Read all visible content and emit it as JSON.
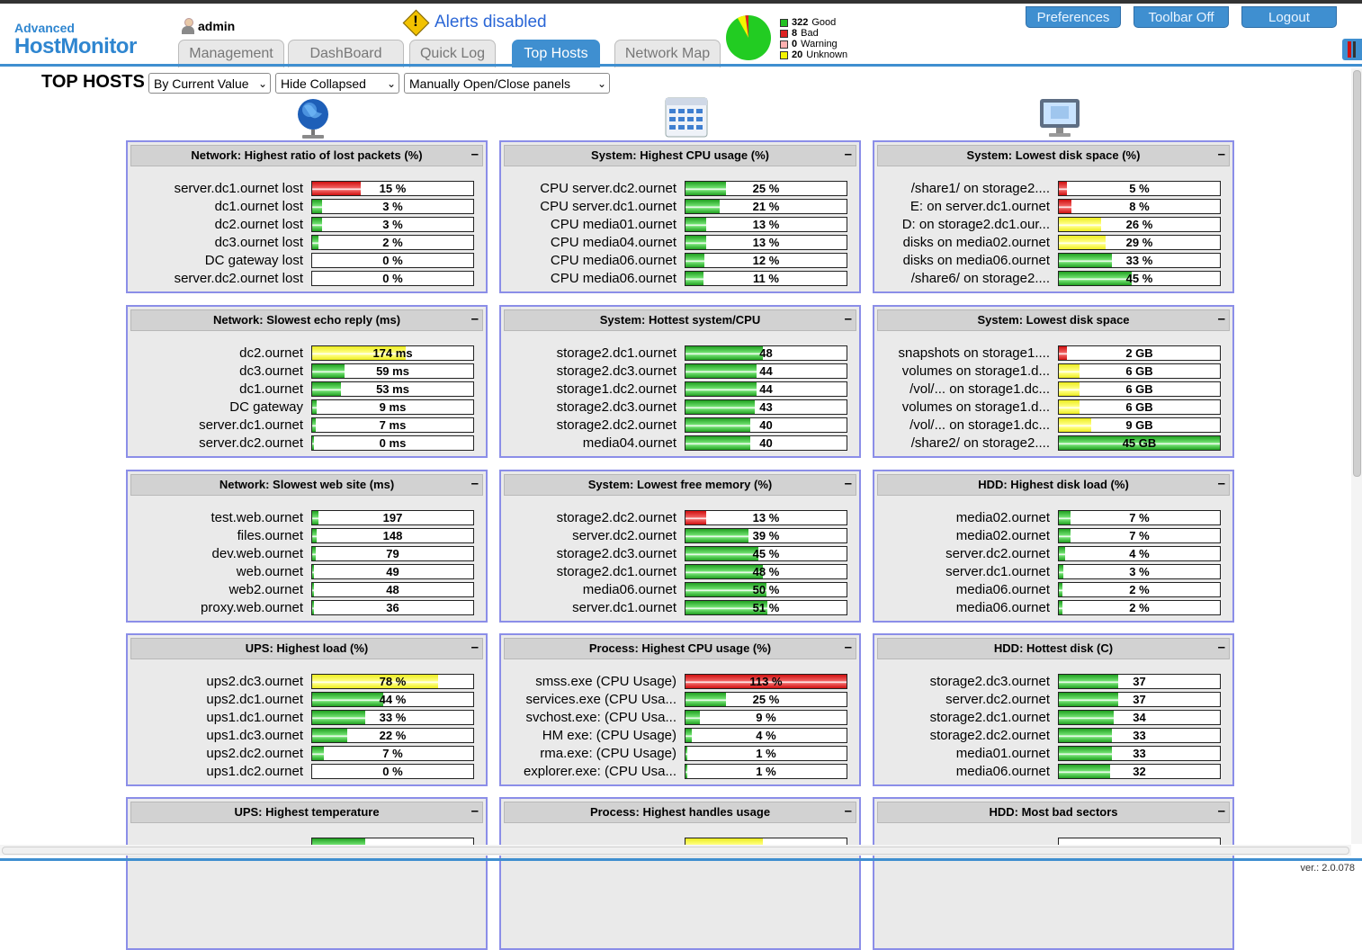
{
  "header": {
    "logo_top": "Advanced",
    "logo_main": "HostMonitor",
    "user": "admin",
    "alert_text": "Alerts disabled",
    "tabs": [
      {
        "label": "Management"
      },
      {
        "label": "DashBoard"
      },
      {
        "label": "Quick Log"
      },
      {
        "label": "Top Hosts"
      },
      {
        "label": "Network Map"
      }
    ],
    "active_tab": "Top Hosts",
    "legend": [
      {
        "count": "322",
        "label": "Good",
        "color": "#22c022"
      },
      {
        "count": "8",
        "label": "Bad",
        "color": "#dd2222"
      },
      {
        "count": "0",
        "label": "Warning",
        "color": "#ffb0b0"
      },
      {
        "count": "20",
        "label": "Unknown",
        "color": "#f4f400"
      }
    ],
    "buttons": [
      "Preferences",
      "Toolbar Off",
      "Logout"
    ]
  },
  "page": {
    "title": "TOP HOSTS",
    "selects": [
      "By Current Value",
      "Hide Collapsed",
      "Manually Open/Close panels"
    ]
  },
  "colors": {
    "good": "#22c022",
    "bad": "#dd2222",
    "warning": "#f4f400",
    "accent": "#3f8fd0",
    "panel_border": "#8b8ee8"
  },
  "columns": [
    {
      "icon": "globe-icon"
    },
    {
      "icon": "calendar-grid-icon"
    },
    {
      "icon": "monitor-icon"
    }
  ],
  "panels": [
    [
      {
        "title": "Network: Highest ratio of lost packets (%)",
        "rows": [
          {
            "label": "server.dc1.ournet lost",
            "value": "15 %",
            "level": 0.3,
            "color": "r"
          },
          {
            "label": "dc1.ournet lost",
            "value": "3 %",
            "level": 0.06,
            "color": "g"
          },
          {
            "label": "dc2.ournet lost",
            "value": "3 %",
            "level": 0.06,
            "color": "g"
          },
          {
            "label": "dc3.ournet lost",
            "value": "2 %",
            "level": 0.04,
            "color": "g"
          },
          {
            "label": "DC gateway lost",
            "value": "0 %",
            "level": 0,
            "color": "g"
          },
          {
            "label": "server.dc2.ournet lost",
            "value": "0 %",
            "level": 0,
            "color": "g"
          }
        ]
      },
      {
        "title": "Network: Slowest echo reply (ms)",
        "rows": [
          {
            "label": "dc2.ournet",
            "value": "174 ms",
            "level": 0.58,
            "color": "y"
          },
          {
            "label": "dc3.ournet",
            "value": "59 ms",
            "level": 0.2,
            "color": "g"
          },
          {
            "label": "dc1.ournet",
            "value": "53 ms",
            "level": 0.18,
            "color": "g"
          },
          {
            "label": "DC gateway",
            "value": "9 ms",
            "level": 0.03,
            "color": "g"
          },
          {
            "label": "server.dc1.ournet",
            "value": "7 ms",
            "level": 0.02,
            "color": "g"
          },
          {
            "label": "server.dc2.ournet",
            "value": "0 ms",
            "level": 0.01,
            "color": "g"
          }
        ]
      },
      {
        "title": "Network: Slowest web site (ms)",
        "rows": [
          {
            "label": "test.web.ournet",
            "value": "197",
            "level": 0.04,
            "color": "g"
          },
          {
            "label": "files.ournet",
            "value": "148",
            "level": 0.03,
            "color": "g"
          },
          {
            "label": "dev.web.ournet",
            "value": "79",
            "level": 0.02,
            "color": "g"
          },
          {
            "label": "web.ournet",
            "value": "49",
            "level": 0.01,
            "color": "g"
          },
          {
            "label": "web2.ournet",
            "value": "48",
            "level": 0.01,
            "color": "g"
          },
          {
            "label": "proxy.web.ournet",
            "value": "36",
            "level": 0.01,
            "color": "g"
          }
        ]
      },
      {
        "title": "UPS: Highest load (%)",
        "rows": [
          {
            "label": "ups2.dc3.ournet",
            "value": "78 %",
            "level": 0.78,
            "color": "y"
          },
          {
            "label": "ups2.dc1.ournet",
            "value": "44 %",
            "level": 0.44,
            "color": "g"
          },
          {
            "label": "ups1.dc1.ournet",
            "value": "33 %",
            "level": 0.33,
            "color": "g"
          },
          {
            "label": "ups1.dc3.ournet",
            "value": "22 %",
            "level": 0.22,
            "color": "g"
          },
          {
            "label": "ups2.dc2.ournet",
            "value": "7 %",
            "level": 0.07,
            "color": "g"
          },
          {
            "label": "ups1.dc2.ournet",
            "value": "0 %",
            "level": 0,
            "color": "g"
          }
        ]
      },
      {
        "title": "UPS: Highest temperature",
        "rows": [
          {
            "label": "",
            "value": "",
            "level": 0.33,
            "color": "g"
          }
        ]
      }
    ],
    [
      {
        "title": "System: Highest CPU usage (%)",
        "rows": [
          {
            "label": "CPU server.dc2.ournet",
            "value": "25 %",
            "level": 0.25,
            "color": "g"
          },
          {
            "label": "CPU server.dc1.ournet",
            "value": "21 %",
            "level": 0.21,
            "color": "g"
          },
          {
            "label": "CPU media01.ournet",
            "value": "13 %",
            "level": 0.13,
            "color": "g"
          },
          {
            "label": "CPU media04.ournet",
            "value": "13 %",
            "level": 0.13,
            "color": "g"
          },
          {
            "label": "CPU media06.ournet",
            "value": "12 %",
            "level": 0.12,
            "color": "g"
          },
          {
            "label": "CPU media06.ournet",
            "value": "11 %",
            "level": 0.11,
            "color": "g"
          }
        ]
      },
      {
        "title": "System: Hottest system/CPU",
        "rows": [
          {
            "label": "storage2.dc1.ournet",
            "value": "48",
            "level": 0.48,
            "color": "g"
          },
          {
            "label": "storage2.dc3.ournet",
            "value": "44",
            "level": 0.44,
            "color": "g"
          },
          {
            "label": "storage1.dc2.ournet",
            "value": "44",
            "level": 0.44,
            "color": "g"
          },
          {
            "label": "storage2.dc3.ournet",
            "value": "43",
            "level": 0.43,
            "color": "g"
          },
          {
            "label": "storage2.dc2.ournet",
            "value": "40",
            "level": 0.4,
            "color": "g"
          },
          {
            "label": "media04.ournet",
            "value": "40",
            "level": 0.4,
            "color": "g"
          }
        ]
      },
      {
        "title": "System: Lowest free memory (%)",
        "rows": [
          {
            "label": "storage2.dc2.ournet",
            "value": "13 %",
            "level": 0.13,
            "color": "r"
          },
          {
            "label": "server.dc2.ournet",
            "value": "39 %",
            "level": 0.39,
            "color": "g"
          },
          {
            "label": "storage2.dc3.ournet",
            "value": "45 %",
            "level": 0.45,
            "color": "g"
          },
          {
            "label": "storage2.dc1.ournet",
            "value": "48 %",
            "level": 0.48,
            "color": "g"
          },
          {
            "label": "media06.ournet",
            "value": "50 %",
            "level": 0.5,
            "color": "g"
          },
          {
            "label": "server.dc1.ournet",
            "value": "51 %",
            "level": 0.51,
            "color": "g"
          }
        ]
      },
      {
        "title": "Process: Highest CPU usage (%)",
        "rows": [
          {
            "label": "smss.exe (CPU Usage)",
            "value": "113 %",
            "level": 1.0,
            "color": "r"
          },
          {
            "label": "services.exe (CPU Usa...",
            "value": "25 %",
            "level": 0.25,
            "color": "g"
          },
          {
            "label": "svchost.exe: (CPU Usa...",
            "value": "9 %",
            "level": 0.09,
            "color": "g"
          },
          {
            "label": "HM exe: (CPU Usage)",
            "value": "4 %",
            "level": 0.04,
            "color": "g"
          },
          {
            "label": "rma.exe: (CPU Usage)",
            "value": "1 %",
            "level": 0.01,
            "color": "g"
          },
          {
            "label": "explorer.exe: (CPU Usa...",
            "value": "1 %",
            "level": 0.01,
            "color": "g"
          }
        ]
      },
      {
        "title": "Process: Highest handles usage",
        "rows": [
          {
            "label": "",
            "value": "",
            "level": 0.48,
            "color": "y"
          }
        ]
      }
    ],
    [
      {
        "title": "System: Lowest disk space (%)",
        "rows": [
          {
            "label": "/share1/ on storage2....",
            "value": "5 %",
            "level": 0.05,
            "color": "r"
          },
          {
            "label": "E: on server.dc1.ournet",
            "value": "8 %",
            "level": 0.08,
            "color": "r"
          },
          {
            "label": "D: on storage2.dc1.our...",
            "value": "26 %",
            "level": 0.26,
            "color": "y"
          },
          {
            "label": "disks on media02.ournet",
            "value": "29 %",
            "level": 0.29,
            "color": "y"
          },
          {
            "label": "disks on media06.ournet",
            "value": "33 %",
            "level": 0.33,
            "color": "g"
          },
          {
            "label": "/share6/ on storage2....",
            "value": "45 %",
            "level": 0.45,
            "color": "g"
          }
        ]
      },
      {
        "title": "System: Lowest disk space",
        "rows": [
          {
            "label": "snapshots on storage1....",
            "value": "2 GB",
            "level": 0.05,
            "color": "r"
          },
          {
            "label": "volumes on storage1.d...",
            "value": "6 GB",
            "level": 0.13,
            "color": "y"
          },
          {
            "label": "/vol/... on storage1.dc...",
            "value": "6 GB",
            "level": 0.13,
            "color": "y"
          },
          {
            "label": "volumes on storage1.d...",
            "value": "6 GB",
            "level": 0.13,
            "color": "y"
          },
          {
            "label": "/vol/... on storage1.dc...",
            "value": "9 GB",
            "level": 0.2,
            "color": "y"
          },
          {
            "label": "/share2/ on storage2....",
            "value": "45 GB",
            "level": 1.0,
            "color": "g"
          }
        ]
      },
      {
        "title": "HDD: Highest disk load (%)",
        "rows": [
          {
            "label": "media02.ournet",
            "value": "7 %",
            "level": 0.07,
            "color": "g"
          },
          {
            "label": "media02.ournet",
            "value": "7 %",
            "level": 0.07,
            "color": "g"
          },
          {
            "label": "server.dc2.ournet",
            "value": "4 %",
            "level": 0.04,
            "color": "g"
          },
          {
            "label": "server.dc1.ournet",
            "value": "3 %",
            "level": 0.03,
            "color": "g"
          },
          {
            "label": "media06.ournet",
            "value": "2 %",
            "level": 0.02,
            "color": "g"
          },
          {
            "label": "media06.ournet",
            "value": "2 %",
            "level": 0.02,
            "color": "g"
          }
        ]
      },
      {
        "title": "HDD: Hottest disk (C)",
        "rows": [
          {
            "label": "storage2.dc3.ournet",
            "value": "37",
            "level": 0.37,
            "color": "g"
          },
          {
            "label": "server.dc2.ournet",
            "value": "37",
            "level": 0.37,
            "color": "g"
          },
          {
            "label": "storage2.dc1.ournet",
            "value": "34",
            "level": 0.34,
            "color": "g"
          },
          {
            "label": "storage2.dc2.ournet",
            "value": "33",
            "level": 0.33,
            "color": "g"
          },
          {
            "label": "media01.ournet",
            "value": "33",
            "level": 0.33,
            "color": "g"
          },
          {
            "label": "media06.ournet",
            "value": "32",
            "level": 0.32,
            "color": "g"
          }
        ]
      },
      {
        "title": "HDD: Most bad sectors",
        "rows": [
          {
            "label": "",
            "value": "",
            "level": 0,
            "color": "g"
          }
        ]
      }
    ]
  ],
  "footer": {
    "version": "ver.: 2.0.078"
  }
}
